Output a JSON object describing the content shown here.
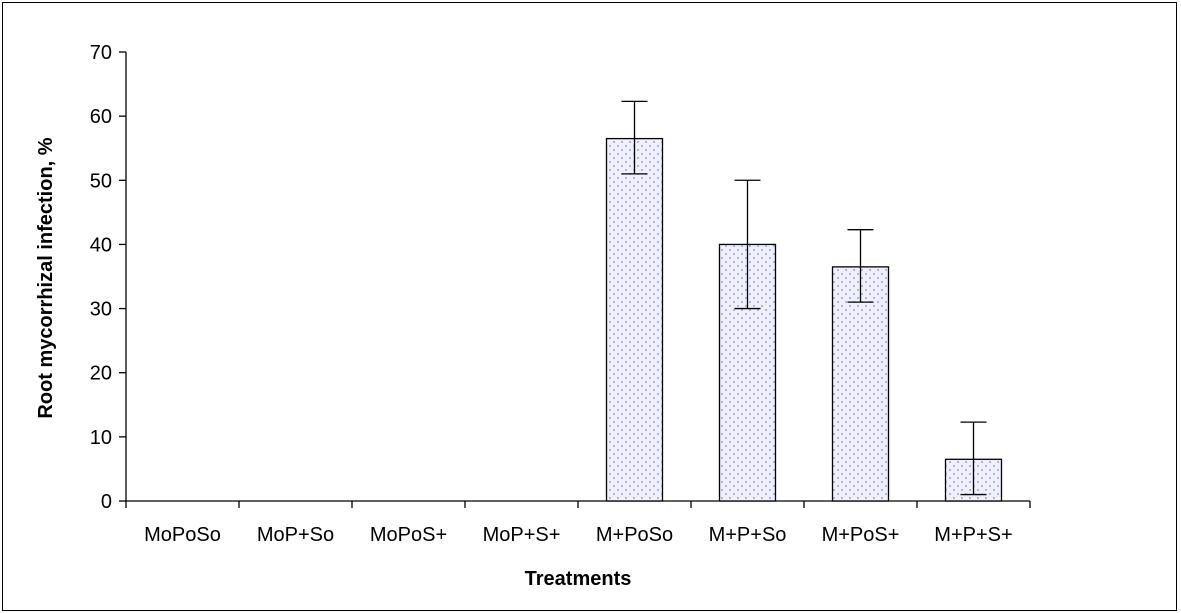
{
  "chart_data": {
    "type": "bar",
    "xlabel": "Treatments",
    "ylabel": "Root mycorrhizal infection, %",
    "ylim": [
      0,
      70
    ],
    "yticks": [
      0,
      10,
      20,
      30,
      40,
      50,
      60,
      70
    ],
    "grid": false,
    "legend": "none",
    "categories": [
      "MoPoSo",
      "MoP+So",
      "MoPoS+",
      "MoP+S+",
      "M+PoSo",
      "M+P+So",
      "M+PoS+",
      "M+P+S+"
    ],
    "values": [
      0,
      0,
      0,
      0,
      56.5,
      40,
      36.5,
      6.5
    ],
    "error_low": [
      0,
      0,
      0,
      0,
      51,
      30,
      31,
      1
    ],
    "error_high": [
      0,
      0,
      0,
      0,
      62.3,
      50,
      42.3,
      12.3
    ],
    "bar_style": {
      "fill": "#eef0fb",
      "dot_color": "#9aa0e6",
      "stroke": "#000000"
    }
  }
}
